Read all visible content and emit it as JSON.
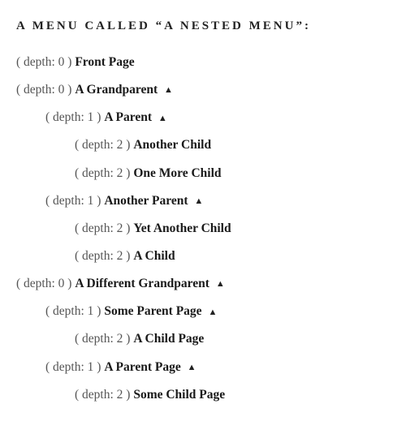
{
  "heading": {
    "prefix": "A MENU CALLED ",
    "menuName": "A NESTED MENU",
    "suffix": ":"
  },
  "depthPrefix": "( depth: ",
  "depthSuffix": " ) ",
  "toggleGlyph": "▲",
  "colors": {
    "text": "#222222",
    "muted": "#555555",
    "background": "#ffffff"
  },
  "typography": {
    "fontFamily": "Georgia, serif",
    "headingFontSize": 15,
    "headingLetterSpacing": 3,
    "itemFontSize": 15.5,
    "lineSpacing": 14,
    "indentPerDepth": 36
  },
  "items": [
    {
      "depth": 0,
      "label": "Front Page",
      "hasToggle": false
    },
    {
      "depth": 0,
      "label": "A Grandparent",
      "hasToggle": true
    },
    {
      "depth": 1,
      "label": "A Parent",
      "hasToggle": true
    },
    {
      "depth": 2,
      "label": "Another Child",
      "hasToggle": false
    },
    {
      "depth": 2,
      "label": "One More Child",
      "hasToggle": false
    },
    {
      "depth": 1,
      "label": "Another Parent",
      "hasToggle": true
    },
    {
      "depth": 2,
      "label": "Yet Another Child",
      "hasToggle": false
    },
    {
      "depth": 2,
      "label": "A Child",
      "hasToggle": false
    },
    {
      "depth": 0,
      "label": "A Different Grandparent",
      "hasToggle": true
    },
    {
      "depth": 1,
      "label": "Some Parent Page",
      "hasToggle": true
    },
    {
      "depth": 2,
      "label": "A Child Page",
      "hasToggle": false
    },
    {
      "depth": 1,
      "label": "A Parent Page",
      "hasToggle": true
    },
    {
      "depth": 2,
      "label": "Some Child Page",
      "hasToggle": false
    }
  ]
}
